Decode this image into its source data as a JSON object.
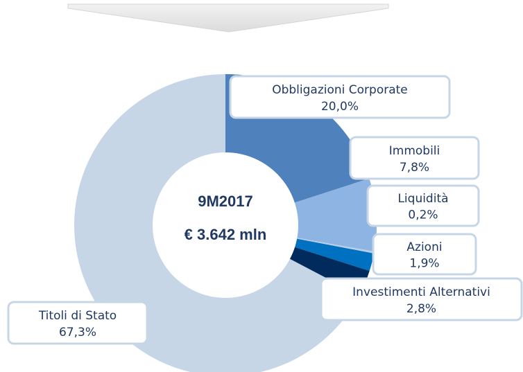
{
  "chart_data": {
    "type": "donut",
    "center_text": [
      "9M2017",
      "€ 3.642 mln"
    ],
    "categories": [
      "Obbligazioni Corporate",
      "Immobili",
      "Liquidità",
      "Azioni",
      "Investimenti Alternativi",
      "Titoli di Stato"
    ],
    "values": [
      20.0,
      7.8,
      0.2,
      1.9,
      2.8,
      67.3
    ],
    "value_labels": [
      "20,0%",
      "7,8%",
      "0,2%",
      "1,9%",
      "2,8%",
      "67,3%"
    ],
    "colors": [
      "#4f81bd",
      "#8eb4e3",
      "#b9cde5",
      "#0070c0",
      "#002b5c",
      "#c6d6e6"
    ]
  }
}
